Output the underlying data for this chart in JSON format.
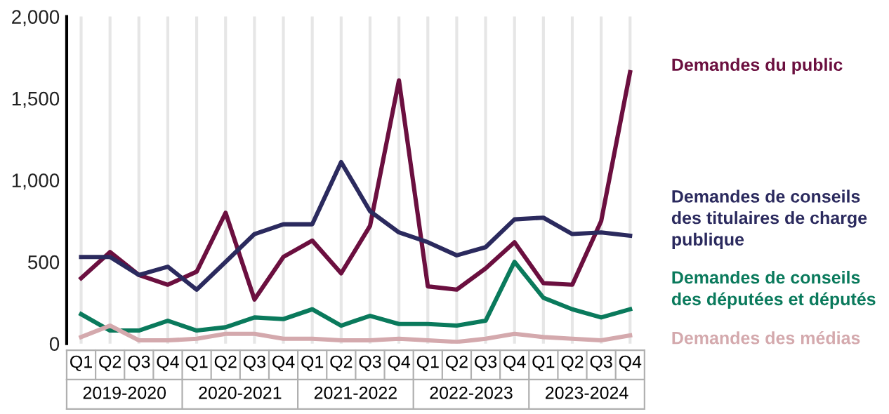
{
  "chart_data": {
    "type": "line",
    "categories": [
      "Q1",
      "Q2",
      "Q3",
      "Q4",
      "Q1",
      "Q2",
      "Q3",
      "Q4",
      "Q1",
      "Q2",
      "Q3",
      "Q4",
      "Q1",
      "Q2",
      "Q3",
      "Q4",
      "Q1",
      "Q2",
      "Q3",
      "Q4"
    ],
    "annotations": [
      "2019-2020",
      "2020-2021",
      "2021-2022",
      "2022-2023",
      "2023-2024"
    ],
    "series": [
      {
        "name": "Demandes du public",
        "color": "#6b0f3f",
        "values": [
          400,
          560,
          420,
          360,
          440,
          800,
          270,
          530,
          630,
          430,
          720,
          1610,
          350,
          330,
          460,
          620,
          370,
          360,
          750,
          1660
        ]
      },
      {
        "name": "Demandes de conseils des titulaires de charge publique",
        "color": "#2b2a5e",
        "values": [
          530,
          530,
          420,
          470,
          330,
          500,
          670,
          730,
          730,
          1110,
          810,
          680,
          620,
          540,
          590,
          760,
          770,
          670,
          680,
          660
        ]
      },
      {
        "name": "Demandes de conseils des députées et députés",
        "color": "#0a7a5c",
        "values": [
          180,
          80,
          80,
          140,
          80,
          100,
          160,
          150,
          210,
          110,
          170,
          120,
          120,
          110,
          140,
          500,
          280,
          210,
          160,
          210
        ]
      },
      {
        "name": "Demandes des médias",
        "color": "#d4a9ad",
        "values": [
          40,
          110,
          20,
          20,
          30,
          60,
          60,
          30,
          30,
          20,
          20,
          30,
          20,
          10,
          30,
          60,
          40,
          30,
          20,
          50
        ]
      }
    ],
    "ylim": [
      0,
      2000
    ],
    "yticks": [
      0,
      500,
      {
        "value": 1000,
        "label": "1,000"
      },
      {
        "value": 1500,
        "label": "1,500"
      },
      {
        "value": 2000,
        "label": "2,000"
      }
    ],
    "grid": "x",
    "legend": "right",
    "line_style": "solid"
  }
}
